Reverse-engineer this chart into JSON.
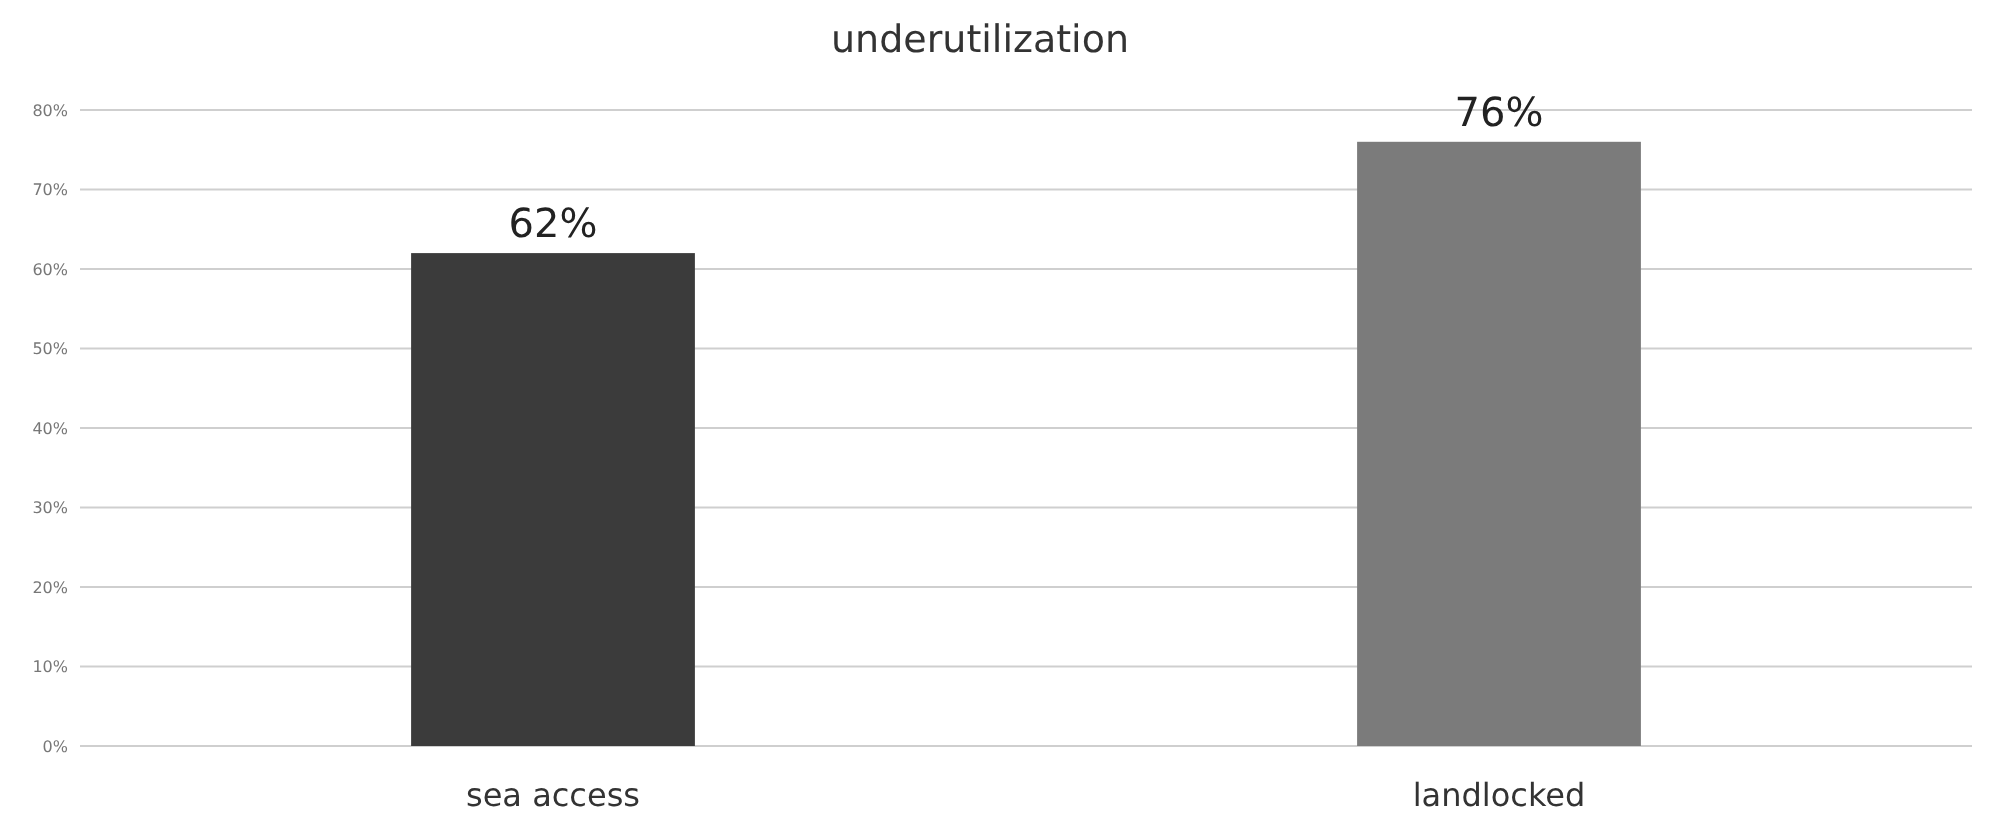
{
  "chart_data": {
    "type": "bar",
    "title": "underutilization",
    "categories": [
      "sea access",
      "landlocked"
    ],
    "colors": [
      "#3b3b3b",
      "#7b7b7b"
    ],
    "values": [
      62,
      76
    ],
    "value_labels": [
      "62%",
      "76%"
    ],
    "ylim": [
      0,
      80
    ],
    "yticks": [
      {
        "value": 0,
        "label": "0%"
      },
      {
        "value": 10,
        "label": "10%"
      },
      {
        "value": 20,
        "label": "20%"
      },
      {
        "value": 30,
        "label": "30%"
      },
      {
        "value": 40,
        "label": "40%"
      },
      {
        "value": 50,
        "label": "50%"
      },
      {
        "value": 60,
        "label": "60%"
      },
      {
        "value": 70,
        "label": "70%"
      },
      {
        "value": 80,
        "label": "80%"
      }
    ],
    "grid": "y"
  }
}
